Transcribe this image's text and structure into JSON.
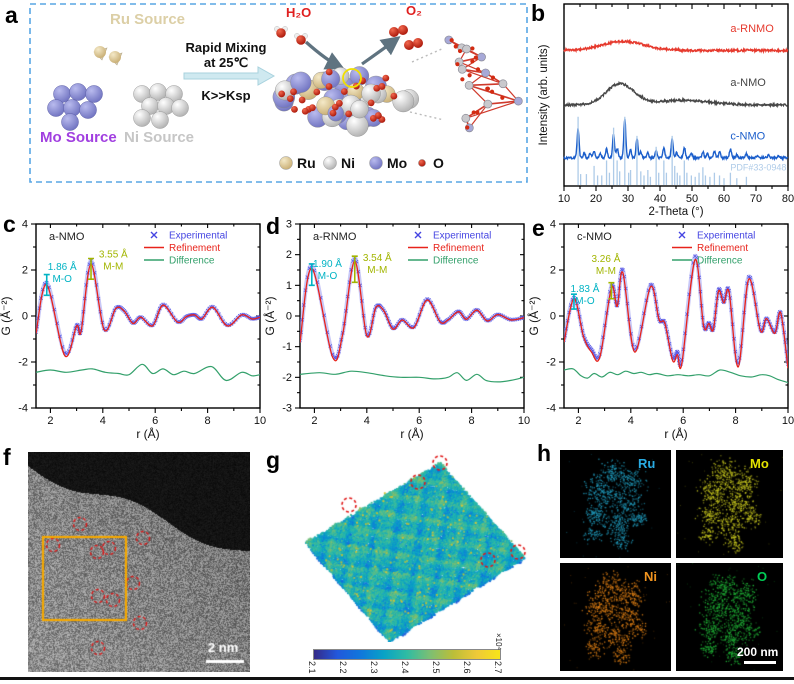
{
  "panel_letters": {
    "a": "a",
    "b": "b",
    "c": "c",
    "d": "d",
    "e": "e",
    "f": "f",
    "g": "g",
    "h": "h"
  },
  "panel_a": {
    "ru_source": "Ru Source",
    "mo_source": "Mo Source",
    "ni_source": "Ni Source",
    "mixing_line1": "Rapid Mixing",
    "mixing_line2": "at 25℃",
    "k_ksp": "K>>Ksp",
    "h2o": "H₂O",
    "o2": "O₂",
    "legend": [
      {
        "label": "Ru",
        "color": "#e2d2a2"
      },
      {
        "label": "Ni",
        "color": "#e6e6e6"
      },
      {
        "label": "Mo",
        "color": "#9093d4"
      },
      {
        "label": "O",
        "color": "#d32b12"
      }
    ],
    "colors": {
      "border": "#58a6e4",
      "ru_text": "#dccfa6",
      "mo_text": "#a13fe0",
      "ni_text": "#c6c6c6",
      "red_text": "#e01f1f",
      "arrow_fill": "#cfe9f0",
      "arrow_dark": "#5f7380"
    }
  },
  "chart_data": [
    {
      "id": "xrd",
      "type": "line",
      "xlabel": "2-Theta (°)",
      "ylabel": "Intensity (arb. units)",
      "xlim": [
        10,
        80
      ],
      "xticks": [
        10,
        20,
        30,
        40,
        50,
        60,
        70,
        80
      ],
      "grid": false,
      "legend_position": "inline-right",
      "series": [
        {
          "name": "a-RNMO",
          "color": "#e63a2e",
          "baseline": 0.255,
          "humps": [
            {
              "center": 28.5,
              "amp": 0.05,
              "sigma": 6.5
            }
          ],
          "label_y": 0.155
        },
        {
          "name": "a-NMO",
          "color": "#474747",
          "baseline": 0.555,
          "humps": [
            {
              "center": 27.5,
              "amp": 0.115,
              "sigma": 4.3
            },
            {
              "center": 47,
              "amp": 0.025,
              "sigma": 9
            }
          ],
          "label_y": 0.45
        },
        {
          "name": "c-NMO",
          "color": "#1b5ecb",
          "baseline": 0.845,
          "peak_scale": 0.26,
          "label_y": 0.745,
          "peaks": [
            [
              14.4,
              0.62
            ],
            [
              16.3,
              0.1
            ],
            [
              18.2,
              0.09
            ],
            [
              19.4,
              0.14
            ],
            [
              21.3,
              0.08
            ],
            [
              23.3,
              0.18
            ],
            [
              25.5,
              0.5
            ],
            [
              26.6,
              0.2
            ],
            [
              29.0,
              0.82
            ],
            [
              30.8,
              0.16
            ],
            [
              32.8,
              0.42
            ],
            [
              34.0,
              0.12
            ],
            [
              36.2,
              0.1
            ],
            [
              38.8,
              0.16
            ],
            [
              41.2,
              0.22
            ],
            [
              43.8,
              0.4
            ],
            [
              45.2,
              0.12
            ],
            [
              47.6,
              0.22
            ],
            [
              49.8,
              0.1
            ],
            [
              53.4,
              0.12
            ],
            [
              54.8,
              0.1
            ],
            [
              57.0,
              0.14
            ],
            [
              58.6,
              0.12
            ],
            [
              62.0,
              0.18
            ],
            [
              64.0,
              0.06
            ],
            [
              67.0,
              0.08
            ],
            [
              70.5,
              0.05
            ],
            [
              74.0,
              0.07
            ],
            [
              77.0,
              0.04
            ]
          ]
        },
        {
          "name": "PDF#33-0948",
          "color": "#aecbe8",
          "stick_scale": 0.75,
          "label_y": 0.915,
          "sticks": [
            [
              14.4,
              0.5
            ],
            [
              15.2,
              0.08
            ],
            [
              17.0,
              0.08
            ],
            [
              19.4,
              0.14
            ],
            [
              20.5,
              0.07
            ],
            [
              21.8,
              0.07
            ],
            [
              23.3,
              0.18
            ],
            [
              24.2,
              0.09
            ],
            [
              25.5,
              0.42
            ],
            [
              26.6,
              0.18
            ],
            [
              27.4,
              0.1
            ],
            [
              29.0,
              0.5
            ],
            [
              30.2,
              0.09
            ],
            [
              30.8,
              0.11
            ],
            [
              32.8,
              0.36
            ],
            [
              34.0,
              0.1
            ],
            [
              35.0,
              0.07
            ],
            [
              36.2,
              0.11
            ],
            [
              37.0,
              0.06
            ],
            [
              38.8,
              0.28
            ],
            [
              39.6,
              0.09
            ],
            [
              41.2,
              0.18
            ],
            [
              42.0,
              0.09
            ],
            [
              43.8,
              0.36
            ],
            [
              44.6,
              0.14
            ],
            [
              45.4,
              0.09
            ],
            [
              46.2,
              0.07
            ],
            [
              47.6,
              0.18
            ],
            [
              48.4,
              0.09
            ],
            [
              49.8,
              0.07
            ],
            [
              51.0,
              0.06
            ],
            [
              52.2,
              0.09
            ],
            [
              53.4,
              0.13
            ],
            [
              54.2,
              0.07
            ],
            [
              55.6,
              0.06
            ],
            [
              57.0,
              0.09
            ],
            [
              58.6,
              0.07
            ],
            [
              60.0,
              0.05
            ],
            [
              62.0,
              0.09
            ],
            [
              64.0,
              0.05
            ],
            [
              67.0,
              0.06
            ]
          ]
        }
      ]
    },
    {
      "id": "pdf_c",
      "type": "line",
      "title": "a-NMO",
      "xlabel": "r (Å)",
      "ylabel": "G (Å⁻²)",
      "xlim": [
        1.45,
        10
      ],
      "ylim": [
        -4,
        4
      ],
      "xticks": [
        2,
        4,
        6,
        8,
        10
      ],
      "yticks": [
        -4,
        -2,
        0,
        2,
        4
      ],
      "legend": [
        {
          "label": "Experimental",
          "color": "#4545e2"
        },
        {
          "label": "Refinement",
          "color": "#e8231b"
        },
        {
          "label": "Difference",
          "color": "#33a06b"
        }
      ],
      "experimental": [
        [
          1.45,
          -0.7
        ],
        [
          1.86,
          1.45
        ],
        [
          2.55,
          -1.6
        ],
        [
          3.0,
          -0.4
        ],
        [
          3.17,
          -0.62
        ],
        [
          3.55,
          2.4
        ],
        [
          4.05,
          -0.55
        ],
        [
          4.5,
          0.35
        ],
        [
          4.82,
          0.22
        ],
        [
          5.15,
          -0.3
        ],
        [
          5.45,
          -0.05
        ],
        [
          5.9,
          -0.4
        ],
        [
          6.3,
          0.5
        ],
        [
          6.85,
          -0.25
        ],
        [
          7.2,
          -0.02
        ],
        [
          7.5,
          0.05
        ],
        [
          7.78,
          -0.12
        ],
        [
          8.2,
          0.4
        ],
        [
          8.75,
          -0.4
        ],
        [
          9.3,
          0.05
        ],
        [
          9.7,
          -0.12
        ],
        [
          10,
          -0.05
        ]
      ],
      "difference": [
        [
          1.45,
          -2.45
        ],
        [
          2.0,
          -2.35
        ],
        [
          2.6,
          -2.45
        ],
        [
          3.2,
          -2.35
        ],
        [
          3.6,
          -2.3
        ],
        [
          4.1,
          -2.45
        ],
        [
          4.6,
          -2.5
        ],
        [
          5.0,
          -2.55
        ],
        [
          5.5,
          -2.1
        ],
        [
          5.9,
          -2.5
        ],
        [
          6.3,
          -2.3
        ],
        [
          6.7,
          -2.55
        ],
        [
          7.1,
          -2.4
        ],
        [
          7.5,
          -2.5
        ],
        [
          8.15,
          -2.2
        ],
        [
          8.7,
          -2.8
        ],
        [
          9.3,
          -2.45
        ],
        [
          9.7,
          -2.6
        ],
        [
          10,
          -2.55
        ]
      ],
      "annotations": [
        {
          "line1": "1.86 Å",
          "line2": "M-O",
          "r": 1.86,
          "color": "#00b3c4",
          "tx": 2.45,
          "ty": 2.0,
          "b0": 0.9,
          "b1": 1.8
        },
        {
          "line1": "3.55 Å",
          "line2": "M-M",
          "r": 3.55,
          "color": "#a2b500",
          "tx": 4.4,
          "ty": 2.55,
          "b0": 1.6,
          "b1": 2.5
        }
      ]
    },
    {
      "id": "pdf_d",
      "type": "line",
      "title": "a-RNMO",
      "xlabel": "r (Å)",
      "ylabel": "G (Å⁻²)",
      "xlim": [
        1.45,
        10
      ],
      "ylim": [
        -3,
        3
      ],
      "xticks": [
        2,
        4,
        6,
        8,
        10
      ],
      "yticks": [
        -3,
        -2,
        -1,
        0,
        1,
        2,
        3
      ],
      "legend": [
        {
          "label": "Experimental",
          "color": "#4545e2"
        },
        {
          "label": "Refinement",
          "color": "#e8231b"
        },
        {
          "label": "Difference",
          "color": "#33a06b"
        }
      ],
      "experimental": [
        [
          1.45,
          -0.8
        ],
        [
          1.9,
          1.65
        ],
        [
          2.7,
          -1.25
        ],
        [
          3.08,
          -0.55
        ],
        [
          3.54,
          1.9
        ],
        [
          4.0,
          -0.6
        ],
        [
          4.35,
          0.3
        ],
        [
          4.65,
          0.18
        ],
        [
          5.0,
          -0.4
        ],
        [
          5.35,
          -0.12
        ],
        [
          5.8,
          -0.35
        ],
        [
          6.3,
          0.55
        ],
        [
          6.8,
          -0.18
        ],
        [
          7.1,
          -0.12
        ],
        [
          7.5,
          0.15
        ],
        [
          7.8,
          -0.1
        ],
        [
          8.2,
          0.2
        ],
        [
          8.6,
          -0.15
        ],
        [
          9.0,
          0.05
        ],
        [
          9.5,
          -0.12
        ],
        [
          10,
          -0.05
        ]
      ],
      "difference": [
        [
          1.45,
          -1.9
        ],
        [
          2.2,
          -1.85
        ],
        [
          2.8,
          -1.9
        ],
        [
          3.4,
          -1.8
        ],
        [
          4.0,
          -1.85
        ],
        [
          4.7,
          -1.95
        ],
        [
          5.3,
          -2.0
        ],
        [
          6.0,
          -2.0
        ],
        [
          6.6,
          -2.05
        ],
        [
          7.1,
          -2.0
        ],
        [
          7.45,
          -1.85
        ],
        [
          7.8,
          -2.1
        ],
        [
          8.2,
          -1.9
        ],
        [
          8.55,
          -2.1
        ],
        [
          9.0,
          -2.15
        ],
        [
          9.5,
          -2.1
        ],
        [
          10,
          -2.0
        ]
      ],
      "annotations": [
        {
          "line1": "1.90 Å",
          "line2": "M-O",
          "r": 1.9,
          "color": "#00b3c4",
          "tx": 2.5,
          "ty": 1.6,
          "b0": 1.0,
          "b1": 1.7
        },
        {
          "line1": "3.54 Å",
          "line2": "M-M",
          "r": 3.54,
          "color": "#a2b500",
          "tx": 4.4,
          "ty": 1.8,
          "b0": 1.1,
          "b1": 1.95
        }
      ]
    },
    {
      "id": "pdf_e",
      "type": "line",
      "title": "c-NMO",
      "xlabel": "r (Å)",
      "ylabel": "G (Å⁻²)",
      "xlim": [
        1.45,
        10
      ],
      "ylim": [
        -4,
        4
      ],
      "xticks": [
        2,
        4,
        6,
        8,
        10
      ],
      "yticks": [
        -4,
        -2,
        0,
        2,
        4
      ],
      "legend": [
        {
          "label": "Experimental",
          "color": "#4545e2"
        },
        {
          "label": "Refinement",
          "color": "#e8231b"
        },
        {
          "label": "Difference",
          "color": "#33a06b"
        }
      ],
      "experimental": [
        [
          1.45,
          -1.05
        ],
        [
          1.83,
          0.8
        ],
        [
          2.2,
          -0.85
        ],
        [
          2.5,
          -1.45
        ],
        [
          2.82,
          -1.65
        ],
        [
          3.26,
          1.3
        ],
        [
          3.48,
          0.45
        ],
        [
          3.7,
          2.0
        ],
        [
          4.15,
          -1.45
        ],
        [
          4.75,
          1.35
        ],
        [
          5.08,
          -0.15
        ],
        [
          5.3,
          -0.3
        ],
        [
          5.6,
          -1.8
        ],
        [
          5.78,
          -1.55
        ],
        [
          5.95,
          -1.9
        ],
        [
          6.45,
          2.6
        ],
        [
          6.78,
          -0.4
        ],
        [
          6.98,
          -0.3
        ],
        [
          7.15,
          -0.55
        ],
        [
          7.35,
          1.15
        ],
        [
          7.55,
          0.6
        ],
        [
          7.75,
          1.1
        ],
        [
          8.1,
          -2.05
        ],
        [
          8.5,
          1.7
        ],
        [
          8.95,
          -0.6
        ],
        [
          9.18,
          -0.1
        ],
        [
          9.5,
          -0.7
        ],
        [
          9.72,
          0.15
        ],
        [
          10,
          -2.1
        ]
      ],
      "difference": [
        [
          1.45,
          -2.35
        ],
        [
          1.8,
          -2.3
        ],
        [
          2.1,
          -2.6
        ],
        [
          2.35,
          -2.7
        ],
        [
          2.6,
          -2.5
        ],
        [
          2.9,
          -2.65
        ],
        [
          3.2,
          -2.45
        ],
        [
          3.5,
          -2.55
        ],
        [
          3.8,
          -2.4
        ],
        [
          4.1,
          -2.5
        ],
        [
          4.4,
          -2.45
        ],
        [
          4.7,
          -2.55
        ],
        [
          5.0,
          -2.5
        ],
        [
          5.4,
          -2.6
        ],
        [
          5.8,
          -2.55
        ],
        [
          6.2,
          -2.6
        ],
        [
          6.6,
          -2.55
        ],
        [
          7.0,
          -2.6
        ],
        [
          7.4,
          -2.35
        ],
        [
          7.8,
          -2.45
        ],
        [
          8.2,
          -2.6
        ],
        [
          8.6,
          -2.65
        ],
        [
          9.0,
          -2.55
        ],
        [
          9.3,
          -2.6
        ],
        [
          9.6,
          -2.75
        ],
        [
          10,
          -2.9
        ]
      ],
      "annotations": [
        {
          "line1": "1.83 Å",
          "line2": "M-O",
          "r": 1.83,
          "color": "#00b3c4",
          "tx": 2.25,
          "ty": 1.05,
          "b0": 0.3,
          "b1": 0.95
        },
        {
          "line1": "3.26 Å",
          "line2": "M-M",
          "r": 3.26,
          "color": "#a2b500",
          "tx": 3.05,
          "ty": 2.35,
          "b0": 0.75,
          "b1": 1.45
        }
      ]
    }
  ],
  "panel_f": {
    "scale_bar": "2 nm"
  },
  "panel_g": {
    "colorbar_ticks": [
      "2.1",
      "2.2",
      "2.3",
      "2.4",
      "2.5",
      "2.6",
      "2.7"
    ],
    "exponent": "×10⁴",
    "colormap": [
      "#352a87",
      "#2258dc",
      "#1077dc",
      "#08a2c6",
      "#2fbca3",
      "#7dbf72",
      "#bcbe38",
      "#eec938",
      "#f7e518"
    ]
  },
  "panel_h": {
    "scale_bar": "200 nm",
    "maps": [
      {
        "label": "Ru",
        "label_color": "#29abe2",
        "dot_color": "#1f97b8"
      },
      {
        "label": "Mo",
        "label_color": "#e2e200",
        "dot_color": "#c3c31e"
      },
      {
        "label": "Ni",
        "label_color": "#f0931f",
        "dot_color": "#dd7e14"
      },
      {
        "label": "O",
        "label_color": "#00cc55",
        "dot_color": "#1fae35"
      }
    ]
  }
}
